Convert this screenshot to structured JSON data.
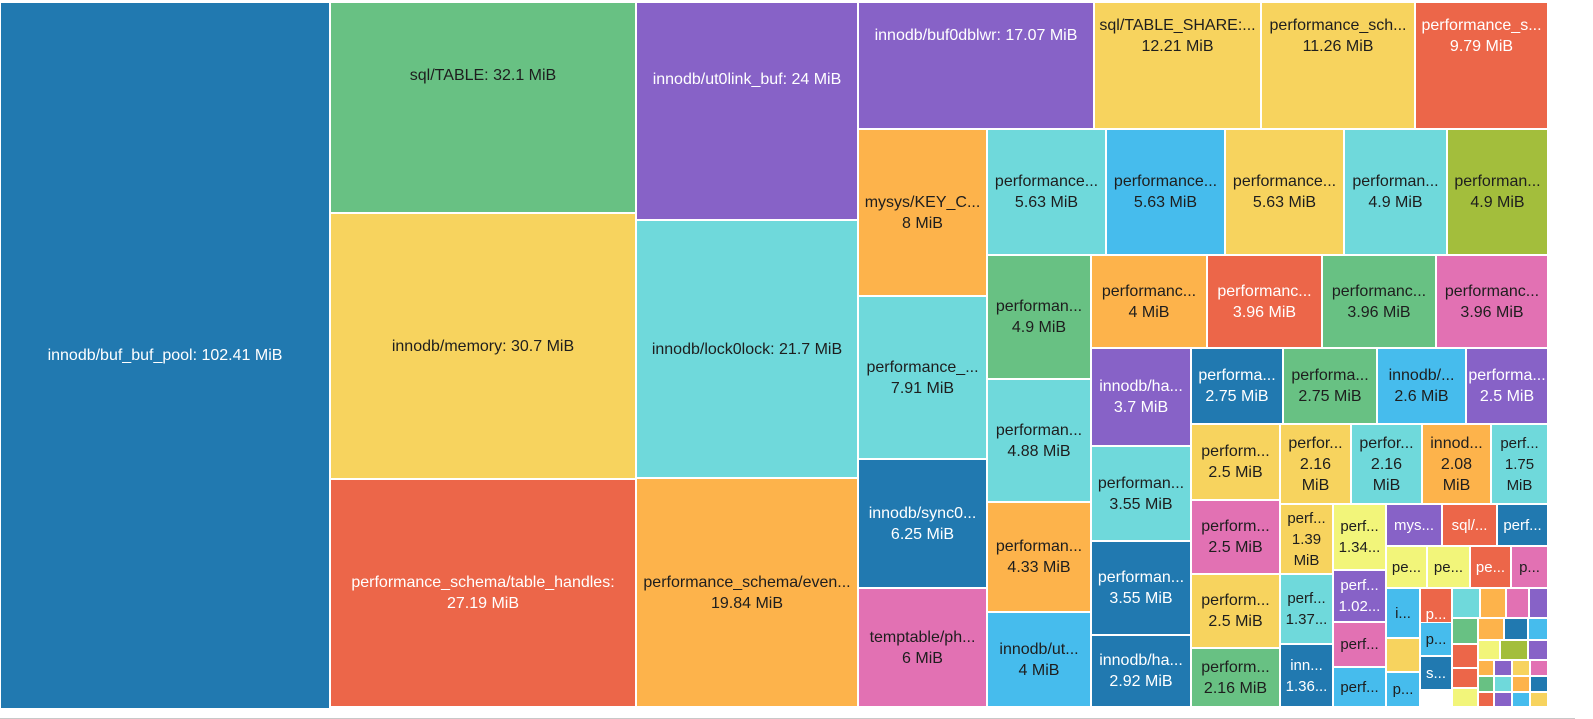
{
  "chart_data": {
    "type": "treemap",
    "unit": "MiB",
    "palette": {
      "blue": "#2179b0",
      "green": "#68c183",
      "purple": "#8762c7",
      "yellow": "#f7d35e",
      "cyan": "#6fd9db",
      "orange": "#fdb34b",
      "red": "#ec6649",
      "pink": "#e271b3",
      "skyblue": "#46bced",
      "olive": "#a3be3c",
      "lightyellow": "#f2f57a"
    },
    "items": [
      {
        "label": "innodb/buf_buf_pool: 102.41 MiB",
        "value": 102.41,
        "color": "blue"
      },
      {
        "label": "sql/TABLE: 32.1 MiB",
        "value": 32.1,
        "color": "green"
      },
      {
        "label": "innodb/memory: 30.7 MiB",
        "value": 30.7,
        "color": "yellow"
      },
      {
        "label": "performance_schema/table_handles:\n27.19 MiB",
        "value": 27.19,
        "color": "red"
      },
      {
        "label": "innodb/ut0link_buf: 24 MiB",
        "value": 24,
        "color": "purple"
      },
      {
        "label": "innodb/lock0lock: 21.7 MiB",
        "value": 21.7,
        "color": "cyan"
      },
      {
        "label": "performance_schema/even...\n19.84 MiB",
        "value": 19.84,
        "color": "orange"
      },
      {
        "label": "innodb/buf0dblwr: 17.07 MiB",
        "value": 17.07,
        "color": "purple"
      },
      {
        "label": "sql/TABLE_SHARE:...\n12.21 MiB",
        "value": 12.21,
        "color": "yellow"
      },
      {
        "label": "performance_sch...\n11.26 MiB",
        "value": 11.26,
        "color": "yellow"
      },
      {
        "label": "performance_s...\n9.79 MiB",
        "value": 9.79,
        "color": "red"
      },
      {
        "label": "mysys/KEY_C...\n8 MiB",
        "value": 8,
        "color": "orange"
      },
      {
        "label": "performance_...\n7.91 MiB",
        "value": 7.91,
        "color": "cyan"
      },
      {
        "label": "innodb/sync0...\n6.25 MiB",
        "value": 6.25,
        "color": "blue"
      },
      {
        "label": "temptable/ph...\n6 MiB",
        "value": 6,
        "color": "pink"
      },
      {
        "label": "performance...\n5.63 MiB",
        "value": 5.63,
        "color": "cyan"
      },
      {
        "label": "performance...\n5.63 MiB",
        "value": 5.63,
        "color": "skyblue"
      },
      {
        "label": "performance...\n5.63 MiB",
        "value": 5.63,
        "color": "yellow"
      },
      {
        "label": "performan...\n4.9 MiB",
        "value": 4.9,
        "color": "cyan"
      },
      {
        "label": "performan...\n4.9 MiB",
        "value": 4.9,
        "color": "olive"
      },
      {
        "label": "performan...\n4.9 MiB",
        "value": 4.9,
        "color": "green"
      },
      {
        "label": "performan...\n4.88 MiB",
        "value": 4.88,
        "color": "cyan"
      },
      {
        "label": "performan...\n4.33 MiB",
        "value": 4.33,
        "color": "orange"
      },
      {
        "label": "innodb/ut...\n4 MiB",
        "value": 4,
        "color": "skyblue"
      },
      {
        "label": "performanc...\n4 MiB",
        "value": 4,
        "color": "orange"
      },
      {
        "label": "performanc...\n3.96 MiB",
        "value": 3.96,
        "color": "red"
      },
      {
        "label": "performanc...\n3.96 MiB",
        "value": 3.96,
        "color": "green"
      },
      {
        "label": "performanc...\n3.96 MiB",
        "value": 3.96,
        "color": "pink"
      },
      {
        "label": "innodb/ha...\n3.7 MiB",
        "value": 3.7,
        "color": "purple"
      },
      {
        "label": "performan...\n3.55 MiB",
        "value": 3.55,
        "color": "cyan"
      },
      {
        "label": "performan...\n3.55 MiB",
        "value": 3.55,
        "color": "blue"
      },
      {
        "label": "innodb/ha...\n2.92 MiB",
        "value": 2.92,
        "color": "blue"
      },
      {
        "label": "performa...\n2.75 MiB",
        "value": 2.75,
        "color": "blue"
      },
      {
        "label": "performa...\n2.75 MiB",
        "value": 2.75,
        "color": "green"
      },
      {
        "label": "innodb/...\n2.6 MiB",
        "value": 2.6,
        "color": "skyblue"
      },
      {
        "label": "performa...\n2.5 MiB",
        "value": 2.5,
        "color": "purple"
      },
      {
        "label": "perform...\n2.5 MiB",
        "value": 2.5,
        "color": "yellow"
      },
      {
        "label": "perform...\n2.5 MiB",
        "value": 2.5,
        "color": "pink"
      },
      {
        "label": "perform...\n2.5 MiB",
        "value": 2.5,
        "color": "yellow"
      },
      {
        "label": "perform...\n2.16 MiB",
        "value": 2.16,
        "color": "green"
      },
      {
        "label": "perfor...\n2.16\nMiB",
        "value": 2.16,
        "color": "yellow"
      },
      {
        "label": "perfor...\n2.16\nMiB",
        "value": 2.16,
        "color": "cyan"
      },
      {
        "label": "innod...\n2.08\nMiB",
        "value": 2.08,
        "color": "orange"
      },
      {
        "label": "perf...\n1.75\nMiB",
        "value": 1.75,
        "color": "cyan"
      },
      {
        "label": "perf...\n1.39\nMiB",
        "value": 1.39,
        "color": "yellow"
      },
      {
        "label": "perf...\n1.34...",
        "value": 1.34,
        "color": "lightyellow"
      },
      {
        "label": "perf...\n1.37...",
        "value": 1.37,
        "color": "cyan"
      },
      {
        "label": "perf...\n1.02...",
        "value": 1.02,
        "color": "purple"
      },
      {
        "label": "inn...\n1.36...",
        "value": 1.36,
        "color": "blue"
      },
      {
        "label": "perf...",
        "value": null,
        "color": "pink"
      },
      {
        "label": "perf...",
        "value": null,
        "color": "skyblue"
      },
      {
        "label": "mys...",
        "value": null,
        "color": "purple"
      },
      {
        "label": "sql/...",
        "value": null,
        "color": "red"
      },
      {
        "label": "perf...",
        "value": null,
        "color": "blue"
      },
      {
        "label": "pe...",
        "value": null,
        "color": "lightyellow"
      },
      {
        "label": "pe...",
        "value": null,
        "color": "lightyellow"
      },
      {
        "label": "pe...",
        "value": null,
        "color": "red"
      },
      {
        "label": "p...",
        "value": null,
        "color": "pink"
      },
      {
        "label": "i...",
        "value": null,
        "color": "skyblue"
      },
      {
        "label": "p...",
        "value": null,
        "color": "red"
      },
      {
        "label": "p...",
        "value": null,
        "color": "skyblue"
      },
      {
        "label": "s...",
        "value": null,
        "color": "blue"
      },
      {
        "label": "p...",
        "value": null,
        "color": "skyblue"
      },
      {
        "label": "",
        "value": null,
        "color": "yellow"
      },
      {
        "label": "",
        "value": null,
        "color": "cyan"
      },
      {
        "label": "",
        "value": null,
        "color": "orange"
      },
      {
        "label": "",
        "value": null,
        "color": "pink"
      },
      {
        "label": "",
        "value": null,
        "color": "purple"
      },
      {
        "label": "",
        "value": null,
        "color": "green"
      },
      {
        "label": "",
        "value": null,
        "color": "orange"
      },
      {
        "label": "",
        "value": null,
        "color": "blue"
      },
      {
        "label": "",
        "value": null,
        "color": "skyblue"
      },
      {
        "label": "",
        "value": null,
        "color": "red"
      },
      {
        "label": "",
        "value": null,
        "color": "lightyellow"
      },
      {
        "label": "",
        "value": null,
        "color": "olive"
      },
      {
        "label": "",
        "value": null,
        "color": "purple"
      },
      {
        "label": "",
        "value": null,
        "color": "red"
      },
      {
        "label": "",
        "value": null,
        "color": "orange"
      },
      {
        "label": "",
        "value": null,
        "color": "purple"
      },
      {
        "label": "",
        "value": null,
        "color": "yellow"
      },
      {
        "label": "",
        "value": null,
        "color": "pink"
      },
      {
        "label": "",
        "value": null,
        "color": "lightyellow"
      },
      {
        "label": "",
        "value": null,
        "color": "green"
      },
      {
        "label": "",
        "value": null,
        "color": "cyan"
      },
      {
        "label": "",
        "value": null,
        "color": "orange"
      },
      {
        "label": "",
        "value": null,
        "color": "blue"
      },
      {
        "label": "",
        "value": null,
        "color": "red"
      },
      {
        "label": "",
        "value": null,
        "color": "purple"
      },
      {
        "label": "",
        "value": null,
        "color": "skyblue"
      },
      {
        "label": "",
        "value": null,
        "color": "yellow"
      },
      {
        "label": "",
        "value": null,
        "color": "cyan"
      }
    ]
  }
}
